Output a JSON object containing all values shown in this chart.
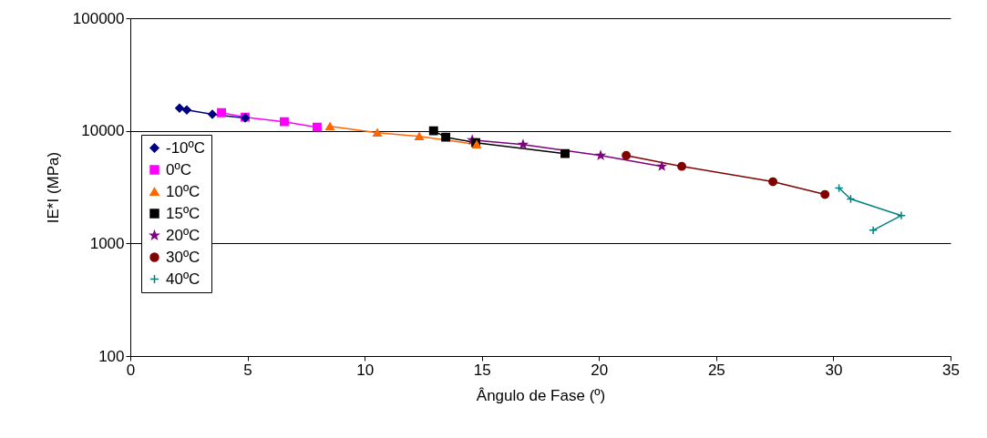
{
  "chart_data": {
    "type": "line",
    "xlabel": "Ângulo de Fase (º)",
    "ylabel": "IE*I (MPa)",
    "log": "y",
    "grid": "y",
    "legend": "left",
    "xlim": [
      0,
      35
    ],
    "xticks": [
      0,
      5,
      10,
      15,
      20,
      25,
      30,
      35
    ],
    "ylim": [
      100,
      100000
    ],
    "yticks": [
      100,
      1000,
      10000,
      100000
    ],
    "series": [
      {
        "name": "-10ºC",
        "color": "#000080",
        "marker": "diamond",
        "x": [
          2.1,
          2.41,
          3.5,
          4.9
        ],
        "values": [
          15900,
          15350,
          14000,
          13000
        ]
      },
      {
        "name": "0ºC",
        "color": "#ff00ff",
        "marker": "square",
        "x": [
          3.89,
          4.9,
          6.57,
          7.97
        ],
        "values": [
          14500,
          13230,
          12050,
          10770
        ]
      },
      {
        "name": "10ºC",
        "color": "#ff6600",
        "marker": "triangle",
        "x": [
          8.52,
          10.54,
          12.33,
          14.78
        ],
        "values": [
          10970,
          9630,
          8940,
          7560
        ]
      },
      {
        "name": "15ºC",
        "color": "#000000",
        "marker": "square",
        "x": [
          12.94,
          13.46,
          14.74,
          18.55
        ],
        "values": [
          10000,
          8780,
          7850,
          6280
        ]
      },
      {
        "name": "20ºC",
        "color": "#800080",
        "marker": "star",
        "x": [
          14.59,
          16.76,
          20.07,
          22.68
        ],
        "values": [
          8300,
          7560,
          6050,
          4840
        ]
      },
      {
        "name": "30ºC",
        "color": "#800000",
        "marker": "circle",
        "x": [
          21.16,
          23.53,
          27.42,
          29.64
        ],
        "values": [
          6050,
          4840,
          3530,
          2720
        ]
      },
      {
        "name": "40ºC",
        "color": "#008080",
        "marker": "cross",
        "x": [
          30.24,
          30.74,
          32.9,
          31.7
        ],
        "values": [
          3100,
          2480,
          1770,
          1310
        ]
      }
    ]
  }
}
